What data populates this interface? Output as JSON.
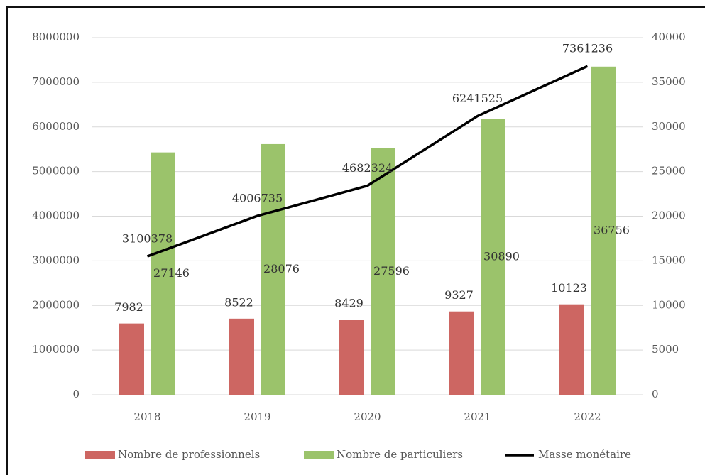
{
  "chart_data": {
    "type": "bar-line",
    "categories": [
      "2018",
      "2019",
      "2020",
      "2021",
      "2022"
    ],
    "series": [
      {
        "name": "Nombre de professionnels",
        "type": "bar",
        "axis": "y2",
        "color": "#cd6662",
        "values": [
          7982,
          8522,
          8429,
          9327,
          10123
        ]
      },
      {
        "name": "Nombre de particuliers",
        "type": "bar",
        "axis": "y2",
        "color": "#9bc36b",
        "values": [
          27146,
          28076,
          27596,
          30890,
          36756
        ]
      },
      {
        "name": "Masse monétaire",
        "type": "line",
        "color": "#000000",
        "values": [
          3100378,
          4006735,
          4682324,
          6241525,
          7361236
        ]
      }
    ],
    "ylim": [
      0,
      8000000
    ],
    "yticks": [
      0,
      1000000,
      2000000,
      3000000,
      4000000,
      5000000,
      6000000,
      7000000,
      8000000
    ],
    "y2lim": [
      0,
      40000
    ],
    "y2ticks": [
      0,
      5000,
      10000,
      15000,
      20000,
      25000,
      30000,
      35000,
      40000
    ],
    "grid": true,
    "legend": "bottom"
  }
}
